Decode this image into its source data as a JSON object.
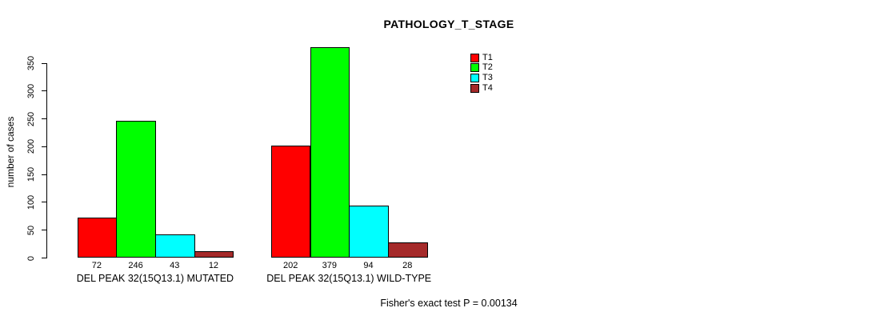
{
  "chart_data": {
    "type": "bar",
    "title": "PATHOLOGY_T_STAGE",
    "ylabel": "number of cases",
    "xlabel": "",
    "ylim": [
      0,
      350
    ],
    "yticks": [
      0,
      50,
      100,
      150,
      200,
      250,
      300,
      350
    ],
    "grid": false,
    "legend_position": "top-right",
    "value_labels_shown": true,
    "categories": [
      "DEL PEAK 32(15Q13.1) MUTATED",
      "DEL PEAK 32(15Q13.1) WILD-TYPE"
    ],
    "series": [
      {
        "name": "T1",
        "color": "#FF0000",
        "values": [
          72,
          202
        ]
      },
      {
        "name": "T2",
        "color": "#00FF00",
        "values": [
          246,
          379
        ]
      },
      {
        "name": "T3",
        "color": "#00FFFF",
        "values": [
          43,
          94
        ]
      },
      {
        "name": "T4",
        "color": "#A52A2A",
        "values": [
          12,
          28
        ]
      }
    ],
    "annotation": "Fisher's exact test P = 0.00134"
  }
}
